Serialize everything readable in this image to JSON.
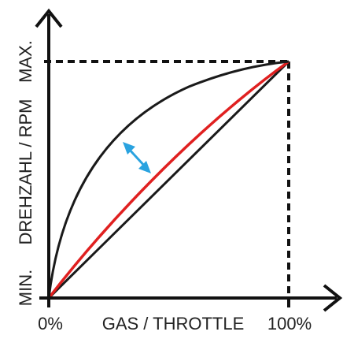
{
  "chart_data": {
    "type": "line",
    "x_axis": {
      "label": "GAS / THROTTLE",
      "min_label": "0%",
      "max_label": "100%"
    },
    "y_axis": {
      "label": "DREHZAHL / RPM",
      "min_label": "MIN.",
      "max_label": "MAX."
    },
    "curves": [
      {
        "id": "linear",
        "color": "#1a1a1a",
        "shape": "linear"
      },
      {
        "id": "moderate",
        "color": "#e02020",
        "shape": "slightly concave"
      },
      {
        "id": "steep",
        "color": "#1a1a1a",
        "shape": "strongly concave"
      }
    ],
    "annotation": {
      "type": "double-arrow",
      "color": "#2aa3e0",
      "between": [
        "steep",
        "moderate"
      ]
    },
    "guides": {
      "style": "dashed",
      "from": "max corner",
      "to": [
        "x-axis",
        "y-axis"
      ]
    }
  },
  "colors": {
    "axis": "#111111",
    "text": "#222222",
    "linear_curve": "#1a1a1a",
    "red_curve": "#e02020",
    "steep_curve": "#1a1a1a",
    "arrow": "#2aa3e0"
  }
}
